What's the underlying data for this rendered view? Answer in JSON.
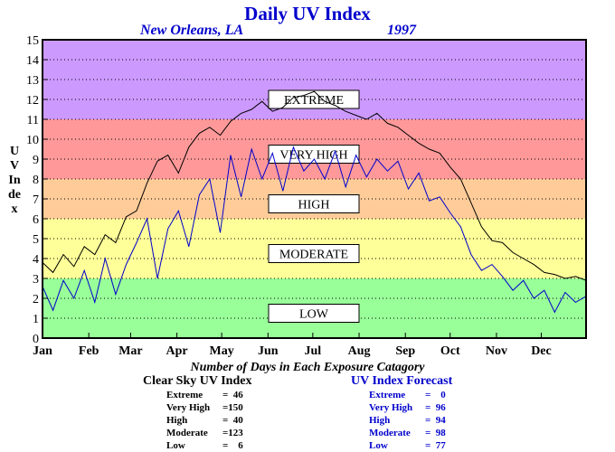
{
  "title": "Daily UV Index",
  "location": "New Orleans, LA",
  "year": "1997",
  "ylabel": "UV Index",
  "caption": "Number of Days in Each Exposure Catagory",
  "stats": {
    "clear_sky": {
      "title": "Clear Sky UV Index",
      "rows": [
        {
          "label": "Extreme",
          "value": "=  46"
        },
        {
          "label": "Very High",
          "value": "=150"
        },
        {
          "label": "High",
          "value": "=  40"
        },
        {
          "label": "Moderate",
          "value": "=123"
        },
        {
          "label": "Low",
          "value": "=    6"
        }
      ]
    },
    "forecast": {
      "title": "UV Index Forecast",
      "rows": [
        {
          "label": "Extreme",
          "value": "=    0"
        },
        {
          "label": "Very High",
          "value": "=  96"
        },
        {
          "label": "High",
          "value": "=  94"
        },
        {
          "label": "Moderate",
          "value": "=  98"
        },
        {
          "label": "Low",
          "value": "=  77"
        }
      ]
    }
  },
  "chart_data": {
    "type": "line",
    "ylim": [
      0,
      15
    ],
    "yticks": [
      0,
      1,
      2,
      3,
      4,
      5,
      6,
      7,
      8,
      9,
      10,
      11,
      12,
      13,
      14,
      15
    ],
    "xlim": [
      1,
      365
    ],
    "month_labels": [
      "Jan",
      "Feb",
      "Mar",
      "Apr",
      "May",
      "Jun",
      "Jul",
      "Aug",
      "Sep",
      "Oct",
      "Nov",
      "Dec"
    ],
    "month_start_days": [
      1,
      32,
      60,
      91,
      121,
      152,
      182,
      213,
      244,
      274,
      305,
      335
    ],
    "grid": "dotted horizontal",
    "bands": [
      {
        "label": "LOW",
        "from": 0,
        "to": 3,
        "color": "#99ff99"
      },
      {
        "label": "MODERATE",
        "from": 3,
        "to": 6,
        "color": "#ffff99"
      },
      {
        "label": "HIGH",
        "from": 6,
        "to": 8,
        "color": "#ffcc99"
      },
      {
        "label": "VERY HIGH",
        "from": 8,
        "to": 11,
        "color": "#ff9999"
      },
      {
        "label": "EXTREME",
        "from": 11,
        "to": 15,
        "color": "#cc99ff"
      }
    ],
    "series": [
      {
        "name": "Clear Sky UV Index",
        "color": "#000000",
        "x": [
          1,
          8,
          15,
          22,
          29,
          36,
          43,
          50,
          57,
          64,
          71,
          78,
          85,
          92,
          99,
          106,
          113,
          120,
          127,
          134,
          141,
          148,
          155,
          162,
          169,
          176,
          183,
          190,
          197,
          204,
          211,
          218,
          225,
          232,
          239,
          246,
          253,
          260,
          267,
          274,
          281,
          288,
          295,
          302,
          309,
          316,
          323,
          330,
          337,
          344,
          351,
          358,
          365
        ],
        "values": [
          3.8,
          3.3,
          4.2,
          3.6,
          4.6,
          4.2,
          5.2,
          4.8,
          6.1,
          6.4,
          7.8,
          8.9,
          9.2,
          8.3,
          9.6,
          10.3,
          10.6,
          10.2,
          10.9,
          11.3,
          11.5,
          11.9,
          11.4,
          11.6,
          12.1,
          12.2,
          12.4,
          11.9,
          11.7,
          11.4,
          11.2,
          11.0,
          11.3,
          10.8,
          10.6,
          10.2,
          9.8,
          9.5,
          9.3,
          8.6,
          8.0,
          6.8,
          5.6,
          4.9,
          4.8,
          4.3,
          4.0,
          3.7,
          3.3,
          3.2,
          3.0,
          3.1,
          2.9
        ]
      },
      {
        "name": "UV Index Forecast",
        "color": "#0000cc",
        "x": [
          1,
          8,
          15,
          22,
          29,
          36,
          43,
          50,
          57,
          64,
          71,
          78,
          85,
          92,
          99,
          106,
          113,
          120,
          127,
          134,
          141,
          148,
          155,
          162,
          169,
          176,
          183,
          190,
          197,
          204,
          211,
          218,
          225,
          232,
          239,
          246,
          253,
          260,
          267,
          274,
          281,
          288,
          295,
          302,
          309,
          316,
          323,
          330,
          337,
          344,
          351,
          358,
          365
        ],
        "values": [
          2.6,
          1.4,
          2.9,
          2.0,
          3.4,
          1.8,
          4.0,
          2.2,
          3.7,
          4.8,
          6.0,
          3.0,
          5.5,
          6.4,
          4.6,
          7.2,
          8.0,
          5.3,
          9.2,
          7.1,
          9.5,
          8.0,
          9.3,
          7.4,
          9.6,
          8.4,
          9.0,
          8.0,
          9.4,
          7.6,
          9.2,
          8.1,
          9.0,
          8.4,
          8.9,
          7.5,
          8.3,
          6.9,
          7.1,
          6.3,
          5.6,
          4.2,
          3.4,
          3.7,
          3.1,
          2.4,
          2.9,
          2.0,
          2.4,
          1.3,
          2.3,
          1.8,
          2.1
        ]
      }
    ]
  }
}
